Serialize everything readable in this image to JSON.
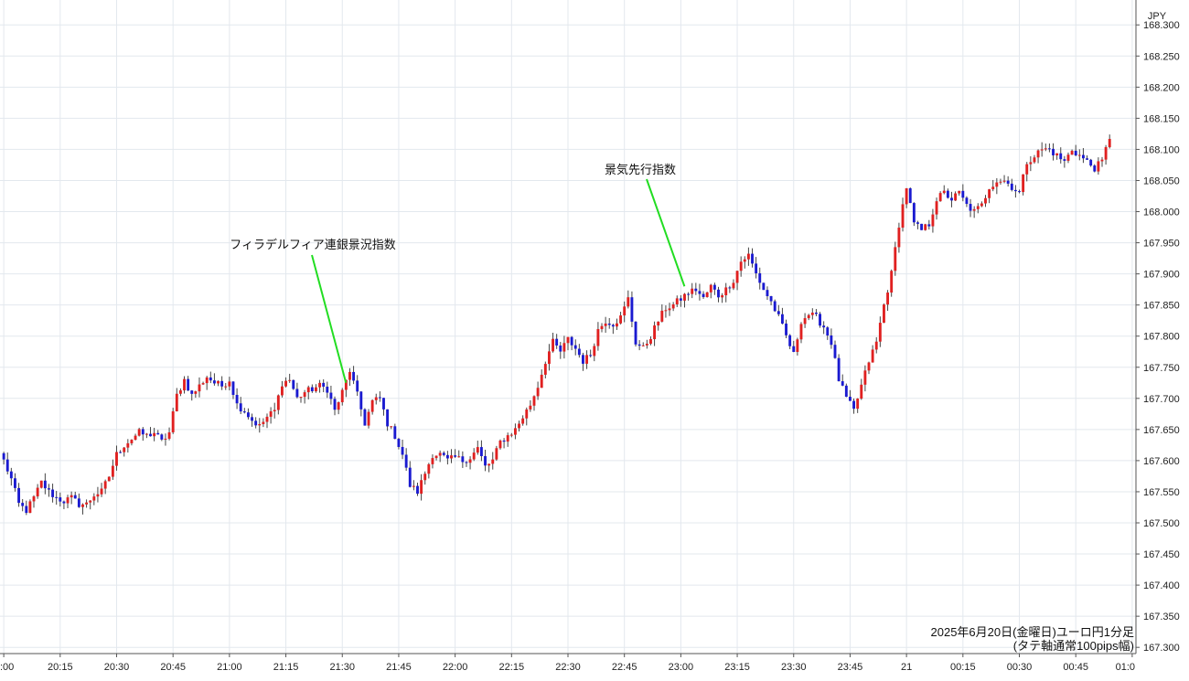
{
  "chart_data": {
    "type": "candlestick",
    "currency_label": "JPY",
    "caption": [
      "2025年6月20日(金曜日)ユーロ円1分足",
      "(タテ軸通常100pips幅)"
    ],
    "ylim": [
      167.29,
      168.34
    ],
    "y_ticks": [
      "168.300",
      "168.250",
      "168.200",
      "168.150",
      "168.100",
      "168.050",
      "168.000",
      "167.950",
      "167.900",
      "167.850",
      "167.800",
      "167.750",
      "167.700",
      "167.650",
      "167.600",
      "167.550",
      "167.500",
      "167.450",
      "167.400",
      "167.350",
      "167.300"
    ],
    "x_ticks": [
      ":00",
      "20:15",
      "20:30",
      "20:45",
      "21:00",
      "21:15",
      "21:30",
      "21:45",
      "22:00",
      "22:15",
      "22:30",
      "22:45",
      "23:00",
      "23:15",
      "23:30",
      "23:45",
      "21",
      "00:15",
      "00:30",
      "00:45",
      "01:0"
    ],
    "x_tick_minutes": [
      0,
      15,
      30,
      45,
      60,
      75,
      90,
      105,
      120,
      135,
      150,
      165,
      180,
      195,
      210,
      225,
      240,
      255,
      270,
      285,
      300
    ],
    "x_range_minutes": [
      -1,
      301
    ],
    "up_color": "#e02020",
    "down_color": "#1a1ad0",
    "wick_color": "#444444",
    "annotation_color": "#22dd22",
    "close_path": [
      [
        0,
        167.6
      ],
      [
        2,
        167.57
      ],
      [
        4,
        167.53
      ],
      [
        6,
        167.52
      ],
      [
        8,
        167.54
      ],
      [
        10,
        167.565
      ],
      [
        12,
        167.55
      ],
      [
        14,
        167.54
      ],
      [
        16,
        167.535
      ],
      [
        18,
        167.54
      ],
      [
        20,
        167.53
      ],
      [
        22,
        167.53
      ],
      [
        24,
        167.545
      ],
      [
        26,
        167.55
      ],
      [
        28,
        167.575
      ],
      [
        30,
        167.61
      ],
      [
        32,
        167.625
      ],
      [
        34,
        167.635
      ],
      [
        36,
        167.645
      ],
      [
        38,
        167.64
      ],
      [
        40,
        167.645
      ],
      [
        42,
        167.63
      ],
      [
        44,
        167.645
      ],
      [
        46,
        167.705
      ],
      [
        48,
        167.73
      ],
      [
        50,
        167.705
      ],
      [
        52,
        167.72
      ],
      [
        54,
        167.735
      ],
      [
        56,
        167.725
      ],
      [
        58,
        167.72
      ],
      [
        60,
        167.73
      ],
      [
        62,
        167.69
      ],
      [
        64,
        167.68
      ],
      [
        66,
        167.665
      ],
      [
        68,
        167.655
      ],
      [
        70,
        167.67
      ],
      [
        72,
        167.68
      ],
      [
        74,
        167.725
      ],
      [
        76,
        167.73
      ],
      [
        78,
        167.7
      ],
      [
        80,
        167.71
      ],
      [
        82,
        167.715
      ],
      [
        84,
        167.72
      ],
      [
        86,
        167.715
      ],
      [
        88,
        167.68
      ],
      [
        90,
        167.71
      ],
      [
        92,
        167.745
      ],
      [
        94,
        167.705
      ],
      [
        96,
        167.66
      ],
      [
        98,
        167.695
      ],
      [
        100,
        167.7
      ],
      [
        102,
        167.66
      ],
      [
        104,
        167.64
      ],
      [
        106,
        167.61
      ],
      [
        108,
        167.56
      ],
      [
        110,
        167.55
      ],
      [
        112,
        167.58
      ],
      [
        114,
        167.61
      ],
      [
        116,
        167.61
      ],
      [
        118,
        167.6
      ],
      [
        120,
        167.605
      ],
      [
        122,
        167.6
      ],
      [
        124,
        167.605
      ],
      [
        126,
        167.62
      ],
      [
        128,
        167.59
      ],
      [
        130,
        167.6
      ],
      [
        132,
        167.63
      ],
      [
        134,
        167.64
      ],
      [
        136,
        167.65
      ],
      [
        138,
        167.67
      ],
      [
        140,
        167.69
      ],
      [
        142,
        167.72
      ],
      [
        144,
        167.76
      ],
      [
        146,
        167.79
      ],
      [
        148,
        167.775
      ],
      [
        150,
        167.795
      ],
      [
        152,
        167.78
      ],
      [
        154,
        167.76
      ],
      [
        156,
        167.77
      ],
      [
        158,
        167.81
      ],
      [
        160,
        167.825
      ],
      [
        162,
        167.82
      ],
      [
        164,
        167.83
      ],
      [
        166,
        167.86
      ],
      [
        168,
        167.79
      ],
      [
        170,
        167.78
      ],
      [
        172,
        167.8
      ],
      [
        174,
        167.825
      ],
      [
        176,
        167.845
      ],
      [
        178,
        167.85
      ],
      [
        180,
        167.86
      ],
      [
        182,
        167.87
      ],
      [
        184,
        167.875
      ],
      [
        186,
        167.86
      ],
      [
        188,
        167.88
      ],
      [
        190,
        167.865
      ],
      [
        192,
        167.875
      ],
      [
        194,
        167.89
      ],
      [
        196,
        167.92
      ],
      [
        198,
        167.93
      ],
      [
        200,
        167.9
      ],
      [
        202,
        167.875
      ],
      [
        204,
        167.855
      ],
      [
        206,
        167.83
      ],
      [
        208,
        167.8
      ],
      [
        210,
        167.77
      ],
      [
        212,
        167.825
      ],
      [
        214,
        167.835
      ],
      [
        216,
        167.83
      ],
      [
        218,
        167.815
      ],
      [
        220,
        167.79
      ],
      [
        222,
        167.73
      ],
      [
        224,
        167.7
      ],
      [
        226,
        167.68
      ],
      [
        228,
        167.72
      ],
      [
        230,
        167.76
      ],
      [
        232,
        167.79
      ],
      [
        234,
        167.85
      ],
      [
        236,
        167.9
      ],
      [
        238,
        167.98
      ],
      [
        240,
        168.04
      ],
      [
        242,
        167.98
      ],
      [
        244,
        167.97
      ],
      [
        246,
        167.98
      ],
      [
        248,
        168.02
      ],
      [
        250,
        168.03
      ],
      [
        252,
        168.02
      ],
      [
        254,
        168.03
      ],
      [
        256,
        168.01
      ],
      [
        258,
        168.0
      ],
      [
        260,
        168.01
      ],
      [
        262,
        168.04
      ],
      [
        264,
        168.05
      ],
      [
        266,
        168.05
      ],
      [
        268,
        168.04
      ],
      [
        270,
        168.03
      ],
      [
        272,
        168.08
      ],
      [
        274,
        168.09
      ],
      [
        276,
        168.1
      ],
      [
        278,
        168.1
      ],
      [
        280,
        168.09
      ],
      [
        282,
        168.08
      ],
      [
        284,
        168.1
      ],
      [
        286,
        168.09
      ],
      [
        288,
        168.08
      ],
      [
        290,
        168.07
      ],
      [
        292,
        168.08
      ],
      [
        294,
        168.12
      ]
    ],
    "annotations": [
      {
        "text": "フィラデルフィア連銀景況指数",
        "minute": 90,
        "price": 167.725
      },
      {
        "text": "景気先行指数",
        "minute": 180,
        "price": 167.88
      }
    ]
  }
}
